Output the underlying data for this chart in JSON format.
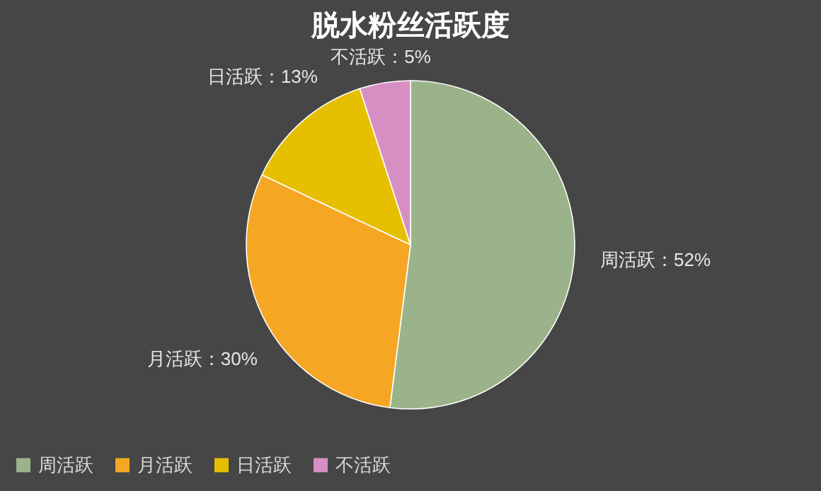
{
  "chart_data": {
    "type": "pie",
    "title": "脱水粉丝活跃度",
    "categories": [
      "周活跃",
      "月活跃",
      "日活跃",
      "不活跃"
    ],
    "values": [
      52,
      30,
      13,
      5
    ],
    "colors": [
      "#9bb38a",
      "#f5a623",
      "#e6bf00",
      "#d78fc3"
    ],
    "value_labels": [
      "周活跃：52%",
      "月活跃：30%",
      "日活跃：13%",
      "不活跃：5%"
    ],
    "legend": "bottom"
  }
}
